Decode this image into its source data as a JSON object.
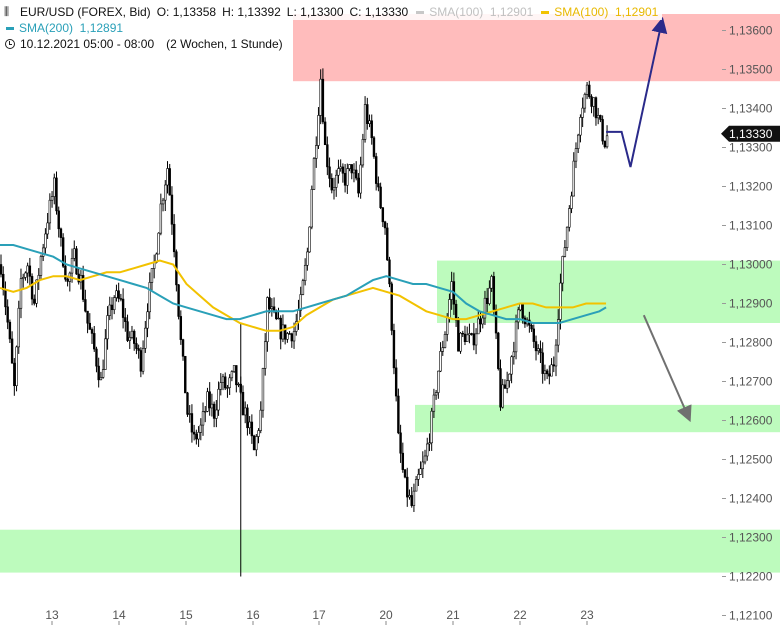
{
  "legend": {
    "symbol_line": "EUR/USD (FOREX, Bid)",
    "open": "O: 1,13358",
    "high": "H: 1,13392",
    "low": "L: 1,13300",
    "close": "C: 1,13330",
    "sma100_grey": "SMA(100)  1,12901",
    "sma100_yellow": "SMA(100)  1,12901",
    "sma200": "SMA(200)  1,12891",
    "time_range": "10.12.2021 05:00 - 08:00",
    "period": "(2 Wochen, 1 Stunde)"
  },
  "last_price_label": "1,13330",
  "colors": {
    "resistance_zone": "#ffbcbc",
    "support_zone": "#bdfbbd",
    "sma100": "#f2c200",
    "sma100_grey": "#c8c8c8",
    "sma200": "#2aa0b8",
    "arrow_up": "#2a2a8a",
    "arrow_down": "#707070",
    "price_tag": "#111111"
  },
  "icons": {
    "chart_type": "candlestick-icon",
    "time": "clock-icon"
  },
  "chart_data": {
    "type": "candlestick",
    "title": "",
    "xlabel": "",
    "ylabel": "",
    "ylim": [
      1.121,
      1.1365
    ],
    "y_ticks": [
      "1,13600",
      "1,13500",
      "1,13400",
      "1,13300",
      "1,13200",
      "1,13100",
      "1,13000",
      "1,12900",
      "1,12800",
      "1,12700",
      "1,12600",
      "1,12500",
      "1,12400",
      "1,12300",
      "1,12200",
      "1,12100"
    ],
    "x_ticks": [
      "13",
      "14",
      "15",
      "16",
      "17",
      "20",
      "21",
      "22",
      "23"
    ],
    "zones": [
      {
        "kind": "resistance",
        "from": 1.1347,
        "to": 1.137
      },
      {
        "kind": "support",
        "from": 1.1285,
        "to": 1.1301
      },
      {
        "kind": "support",
        "from": 1.1257,
        "to": 1.1264
      },
      {
        "kind": "support",
        "from": 1.1221,
        "to": 1.1232
      }
    ],
    "price_path": [
      [
        0,
        1.13
      ],
      [
        3,
        1.1285
      ],
      [
        6,
        1.1268
      ],
      [
        9,
        1.1296
      ],
      [
        12,
        1.13
      ],
      [
        15,
        1.129
      ],
      [
        18,
        1.1302
      ],
      [
        21,
        1.1312
      ],
      [
        24,
        1.132
      ],
      [
        27,
        1.1305
      ],
      [
        30,
        1.1295
      ],
      [
        33,
        1.1302
      ],
      [
        36,
        1.1296
      ],
      [
        39,
        1.1285
      ],
      [
        42,
        1.1278
      ],
      [
        45,
        1.127
      ],
      [
        48,
        1.1285
      ],
      [
        51,
        1.1292
      ],
      [
        54,
        1.129
      ],
      [
        57,
        1.1282
      ],
      [
        60,
        1.128
      ],
      [
        63,
        1.1275
      ],
      [
        66,
        1.129
      ],
      [
        69,
        1.13
      ],
      [
        72,
        1.1315
      ],
      [
        75,
        1.1325
      ],
      [
        78,
        1.1305
      ],
      [
        81,
        1.128
      ],
      [
        84,
        1.1262
      ],
      [
        87,
        1.1255
      ],
      [
        90,
        1.1258
      ],
      [
        93,
        1.1265
      ],
      [
        96,
        1.1262
      ],
      [
        99,
        1.127
      ],
      [
        102,
        1.1268
      ],
      [
        105,
        1.1272
      ],
      [
        108,
        1.1265
      ],
      [
        111,
        1.126
      ],
      [
        114,
        1.1252
      ],
      [
        117,
        1.1262
      ],
      [
        120,
        1.129
      ],
      [
        123,
        1.1286
      ],
      [
        126,
        1.1283
      ],
      [
        129,
        1.1282
      ],
      [
        132,
        1.1283
      ],
      [
        135,
        1.129
      ],
      [
        138,
        1.1303
      ],
      [
        140,
        1.132
      ],
      [
        142,
        1.1333
      ],
      [
        144,
        1.1348
      ],
      [
        146,
        1.133
      ],
      [
        149,
        1.132
      ],
      [
        152,
        1.1323
      ],
      [
        155,
        1.1322
      ],
      [
        158,
        1.1325
      ],
      [
        161,
        1.1318
      ],
      [
        164,
        1.134
      ],
      [
        167,
        1.1332
      ],
      [
        170,
        1.1318
      ],
      [
        173,
        1.131
      ],
      [
        176,
        1.1285
      ],
      [
        179,
        1.1255
      ],
      [
        182,
        1.1243
      ],
      [
        185,
        1.1238
      ],
      [
        188,
        1.1245
      ],
      [
        191,
        1.125
      ],
      [
        194,
        1.126
      ],
      [
        197,
        1.1273
      ],
      [
        200,
        1.1283
      ],
      [
        203,
        1.1295
      ],
      [
        206,
        1.128
      ],
      [
        209,
        1.1282
      ],
      [
        212,
        1.128
      ],
      [
        215,
        1.1285
      ],
      [
        218,
        1.129
      ],
      [
        221,
        1.1295
      ],
      [
        223,
        1.128
      ],
      [
        225,
        1.1265
      ],
      [
        228,
        1.127
      ],
      [
        231,
        1.128
      ],
      [
        234,
        1.129
      ],
      [
        237,
        1.1285
      ],
      [
        240,
        1.128
      ],
      [
        243,
        1.1275
      ],
      [
        246,
        1.127
      ],
      [
        249,
        1.1275
      ],
      [
        252,
        1.1295
      ],
      [
        255,
        1.131
      ],
      [
        258,
        1.1325
      ],
      [
        261,
        1.134
      ],
      [
        264,
        1.1345
      ],
      [
        267,
        1.1342
      ],
      [
        270,
        1.1335
      ],
      [
        273,
        1.133
      ]
    ],
    "sma100": [
      [
        0,
        1.1294
      ],
      [
        6,
        1.1293
      ],
      [
        12,
        1.1294
      ],
      [
        18,
        1.1296
      ],
      [
        24,
        1.1297
      ],
      [
        30,
        1.1297
      ],
      [
        36,
        1.1296
      ],
      [
        42,
        1.1297
      ],
      [
        48,
        1.1298
      ],
      [
        54,
        1.1298
      ],
      [
        60,
        1.1299
      ],
      [
        66,
        1.13
      ],
      [
        72,
        1.1301
      ],
      [
        78,
        1.13
      ],
      [
        84,
        1.1295
      ],
      [
        90,
        1.1292
      ],
      [
        96,
        1.1289
      ],
      [
        102,
        1.1287
      ],
      [
        108,
        1.1285
      ],
      [
        114,
        1.1284
      ],
      [
        120,
        1.1283
      ],
      [
        126,
        1.1283
      ],
      [
        132,
        1.1284
      ],
      [
        138,
        1.1287
      ],
      [
        144,
        1.1289
      ],
      [
        150,
        1.1291
      ],
      [
        156,
        1.1292
      ],
      [
        162,
        1.1293
      ],
      [
        168,
        1.1294
      ],
      [
        174,
        1.1293
      ],
      [
        180,
        1.1292
      ],
      [
        186,
        1.129
      ],
      [
        192,
        1.1288
      ],
      [
        198,
        1.1287
      ],
      [
        204,
        1.1286
      ],
      [
        210,
        1.1286
      ],
      [
        216,
        1.1287
      ],
      [
        222,
        1.1288
      ],
      [
        228,
        1.1289
      ],
      [
        234,
        1.129
      ],
      [
        240,
        1.129
      ],
      [
        246,
        1.1289
      ],
      [
        252,
        1.1289
      ],
      [
        258,
        1.1289
      ],
      [
        264,
        1.129
      ],
      [
        270,
        1.129
      ],
      [
        273,
        1.129
      ]
    ],
    "sma200": [
      [
        0,
        1.1305
      ],
      [
        6,
        1.1305
      ],
      [
        12,
        1.1304
      ],
      [
        18,
        1.1303
      ],
      [
        24,
        1.1302
      ],
      [
        30,
        1.13
      ],
      [
        36,
        1.1299
      ],
      [
        42,
        1.1298
      ],
      [
        48,
        1.1297
      ],
      [
        54,
        1.1296
      ],
      [
        60,
        1.1295
      ],
      [
        66,
        1.1294
      ],
      [
        72,
        1.1292
      ],
      [
        78,
        1.129
      ],
      [
        84,
        1.1289
      ],
      [
        90,
        1.1288
      ],
      [
        96,
        1.1287
      ],
      [
        102,
        1.1286
      ],
      [
        108,
        1.1286
      ],
      [
        114,
        1.1287
      ],
      [
        120,
        1.1288
      ],
      [
        126,
        1.1288
      ],
      [
        132,
        1.1288
      ],
      [
        138,
        1.1289
      ],
      [
        144,
        1.129
      ],
      [
        150,
        1.1291
      ],
      [
        156,
        1.1292
      ],
      [
        162,
        1.1294
      ],
      [
        168,
        1.1296
      ],
      [
        174,
        1.1297
      ],
      [
        180,
        1.1296
      ],
      [
        186,
        1.1295
      ],
      [
        192,
        1.1295
      ],
      [
        198,
        1.1294
      ],
      [
        204,
        1.1293
      ],
      [
        210,
        1.129
      ],
      [
        216,
        1.1288
      ],
      [
        222,
        1.1287
      ],
      [
        228,
        1.1286
      ],
      [
        234,
        1.1286
      ],
      [
        240,
        1.1285
      ],
      [
        246,
        1.1285
      ],
      [
        252,
        1.1285
      ],
      [
        258,
        1.1286
      ],
      [
        264,
        1.1287
      ],
      [
        270,
        1.1288
      ],
      [
        273,
        1.1289
      ]
    ],
    "projection_up": [
      [
        273,
        1.1334
      ],
      [
        280,
        1.1334
      ],
      [
        284,
        1.1325
      ],
      [
        298,
        1.1362
      ]
    ],
    "projection_down": [
      [
        290,
        1.1287
      ],
      [
        310,
        1.1261
      ]
    ],
    "last_price": 1.1333
  }
}
